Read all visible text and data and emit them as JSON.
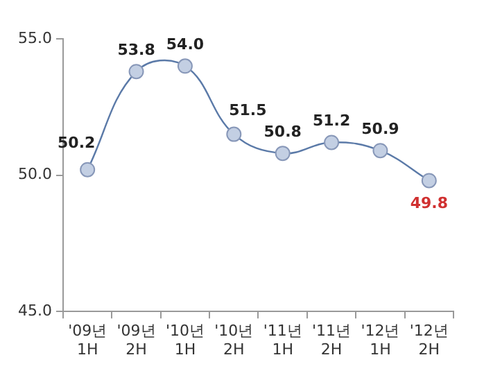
{
  "chart_data": {
    "type": "line",
    "categories": [
      "'09년 1H",
      "'09년 2H",
      "'10년 1H",
      "'10년 2H",
      "'11년 1H",
      "'11년 2H",
      "'12년 1H",
      "'12년 2H"
    ],
    "series": [
      {
        "color": "#5b7aa8",
        "values": [
          50.2,
          53.8,
          54.0,
          51.5,
          50.8,
          51.2,
          50.9,
          49.8
        ],
        "value_labels": [
          "50.2",
          "53.8",
          "54.0",
          "51.5",
          "50.8",
          "51.2",
          "50.9",
          "49.8"
        ]
      }
    ],
    "ylim": [
      45,
      55
    ],
    "yticks": [
      {
        "value": 45,
        "label": "45.0"
      },
      {
        "value": 50,
        "label": "50.0"
      },
      {
        "value": 55,
        "label": "55.0"
      }
    ],
    "grid": false,
    "legend": false,
    "marker": "circle",
    "line_style": "solid"
  }
}
